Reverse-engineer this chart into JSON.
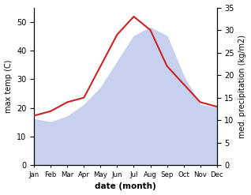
{
  "months": [
    "Jan",
    "Feb",
    "Mar",
    "Apr",
    "May",
    "Jun",
    "Jul",
    "Aug",
    "Sep",
    "Oct",
    "Nov",
    "Dec"
  ],
  "temperature": [
    16,
    15,
    17,
    21,
    27,
    36,
    45,
    48,
    45,
    31,
    21,
    20
  ],
  "precipitation": [
    11,
    12,
    14,
    15,
    22,
    29,
    33,
    30,
    22,
    18,
    14,
    13
  ],
  "temp_color_fill": "#c8d0f0",
  "temp_fill_alpha": 1.0,
  "precip_color": "#cc2222",
  "precip_linewidth": 1.5,
  "ylabel_left": "max temp (C)",
  "ylabel_right": "med. precipitation (kg/m2)",
  "xlabel": "date (month)",
  "ylim_left": [
    0,
    55
  ],
  "ylim_right": [
    0,
    35
  ],
  "yticks_left": [
    0,
    10,
    20,
    30,
    40,
    50
  ],
  "yticks_right": [
    0,
    5,
    10,
    15,
    20,
    25,
    30,
    35
  ],
  "bg_color": "#ffffff"
}
